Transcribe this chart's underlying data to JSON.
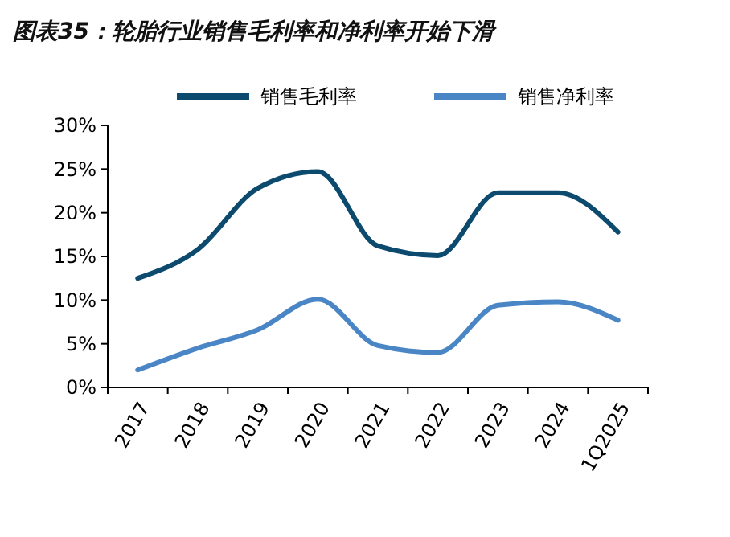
{
  "chart_data": {
    "type": "line",
    "title": "图表35：轮胎行业销售毛利率和净利率开始下滑",
    "categories": [
      "2017",
      "2018",
      "2019",
      "2020",
      "2021",
      "2022",
      "2023",
      "2024",
      "1Q2025"
    ],
    "series": [
      {
        "name": "销售毛利率",
        "color": "#0c4a6e",
        "values": [
          12.5,
          15.8,
          22.8,
          24.7,
          16.2,
          15.1,
          22.3,
          22.3,
          17.8
        ]
      },
      {
        "name": "销售净利率",
        "color": "#4a86c5",
        "values": [
          2.0,
          4.5,
          6.6,
          10.1,
          4.8,
          4.0,
          9.4,
          9.8,
          7.7
        ]
      }
    ],
    "ylim": [
      0,
      30
    ],
    "yticks": [
      {
        "value": 0,
        "label": "0%"
      },
      {
        "value": 5,
        "label": "5%"
      },
      {
        "value": 10,
        "label": "10%"
      },
      {
        "value": 15,
        "label": "15%"
      },
      {
        "value": 20,
        "label": "20%"
      },
      {
        "value": 25,
        "label": "25%"
      },
      {
        "value": 30,
        "label": "30%"
      }
    ],
    "grid": false,
    "legend": "top",
    "marker": "none",
    "line_style": "solid"
  }
}
